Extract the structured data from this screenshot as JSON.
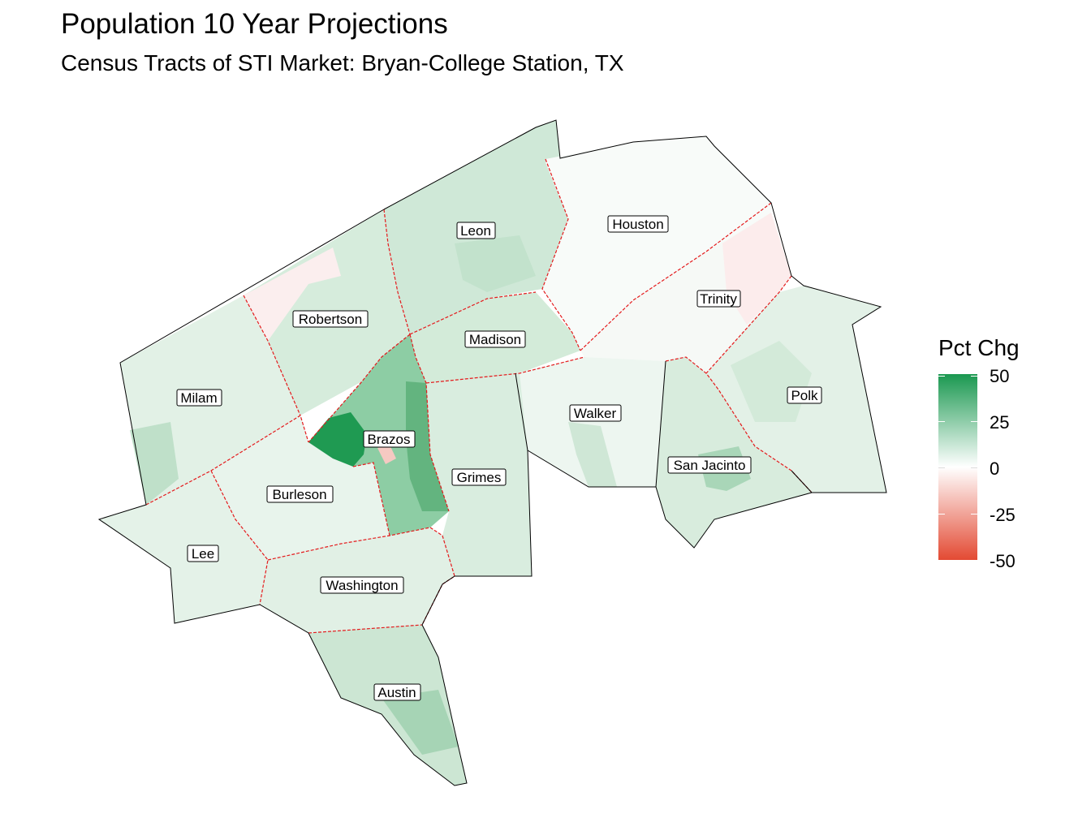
{
  "title": "Population 10 Year Projections",
  "subtitle": "Census Tracts of STI Market: Bryan-College Station, TX",
  "legend": {
    "title": "Pct Chg",
    "ticks": [
      "50",
      "25",
      "0",
      "-25",
      "-50"
    ],
    "range": [
      -50,
      50
    ],
    "colors": {
      "high": "#1a9850",
      "mid": "#ffffff",
      "low": "#e34a33"
    }
  },
  "counties": [
    {
      "name": "Leon",
      "pct_chg": 12
    },
    {
      "name": "Houston",
      "pct_chg": 1
    },
    {
      "name": "Robertson",
      "pct_chg": 10
    },
    {
      "name": "Madison",
      "pct_chg": 10
    },
    {
      "name": "Trinity",
      "pct_chg": 3
    },
    {
      "name": "Milam",
      "pct_chg": 7
    },
    {
      "name": "Brazos",
      "pct_chg": 35
    },
    {
      "name": "Walker",
      "pct_chg": 4
    },
    {
      "name": "Polk",
      "pct_chg": 8
    },
    {
      "name": "Grimes",
      "pct_chg": 11
    },
    {
      "name": "Burleson",
      "pct_chg": 6
    },
    {
      "name": "San Jacinto",
      "pct_chg": 10
    },
    {
      "name": "Lee",
      "pct_chg": 6
    },
    {
      "name": "Washington",
      "pct_chg": 8
    },
    {
      "name": "Austin",
      "pct_chg": 14
    }
  ]
}
